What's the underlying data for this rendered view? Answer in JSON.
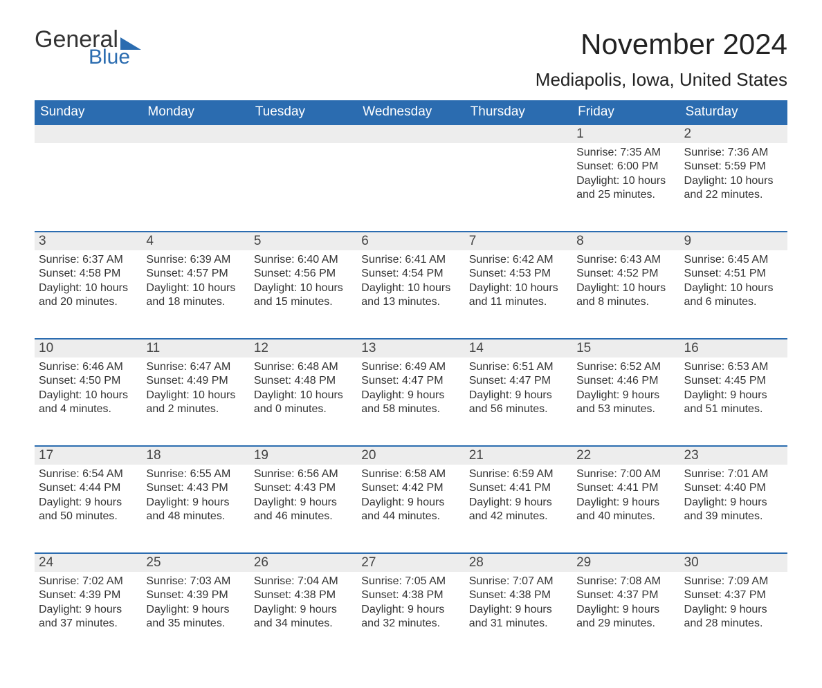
{
  "logo": {
    "word1": "General",
    "word2": "Blue"
  },
  "title": "November 2024",
  "location": "Mediapolis, Iowa, United States",
  "colors": {
    "header_bg": "#2b6cb0",
    "header_text": "#ffffff",
    "row_border": "#2b6cb0",
    "daynum_bg": "#ededed",
    "body_text": "#333333",
    "page_bg": "#ffffff"
  },
  "weekdays": [
    "Sunday",
    "Monday",
    "Tuesday",
    "Wednesday",
    "Thursday",
    "Friday",
    "Saturday"
  ],
  "weeks": [
    [
      null,
      null,
      null,
      null,
      null,
      {
        "n": "1",
        "sr": "7:35 AM",
        "ss": "6:00 PM",
        "d1": "10 hours",
        "d2": "and 25 minutes."
      },
      {
        "n": "2",
        "sr": "7:36 AM",
        "ss": "5:59 PM",
        "d1": "10 hours",
        "d2": "and 22 minutes."
      }
    ],
    [
      {
        "n": "3",
        "sr": "6:37 AM",
        "ss": "4:58 PM",
        "d1": "10 hours",
        "d2": "and 20 minutes."
      },
      {
        "n": "4",
        "sr": "6:39 AM",
        "ss": "4:57 PM",
        "d1": "10 hours",
        "d2": "and 18 minutes."
      },
      {
        "n": "5",
        "sr": "6:40 AM",
        "ss": "4:56 PM",
        "d1": "10 hours",
        "d2": "and 15 minutes."
      },
      {
        "n": "6",
        "sr": "6:41 AM",
        "ss": "4:54 PM",
        "d1": "10 hours",
        "d2": "and 13 minutes."
      },
      {
        "n": "7",
        "sr": "6:42 AM",
        "ss": "4:53 PM",
        "d1": "10 hours",
        "d2": "and 11 minutes."
      },
      {
        "n": "8",
        "sr": "6:43 AM",
        "ss": "4:52 PM",
        "d1": "10 hours",
        "d2": "and 8 minutes."
      },
      {
        "n": "9",
        "sr": "6:45 AM",
        "ss": "4:51 PM",
        "d1": "10 hours",
        "d2": "and 6 minutes."
      }
    ],
    [
      {
        "n": "10",
        "sr": "6:46 AM",
        "ss": "4:50 PM",
        "d1": "10 hours",
        "d2": "and 4 minutes."
      },
      {
        "n": "11",
        "sr": "6:47 AM",
        "ss": "4:49 PM",
        "d1": "10 hours",
        "d2": "and 2 minutes."
      },
      {
        "n": "12",
        "sr": "6:48 AM",
        "ss": "4:48 PM",
        "d1": "10 hours",
        "d2": "and 0 minutes."
      },
      {
        "n": "13",
        "sr": "6:49 AM",
        "ss": "4:47 PM",
        "d1": "9 hours",
        "d2": "and 58 minutes."
      },
      {
        "n": "14",
        "sr": "6:51 AM",
        "ss": "4:47 PM",
        "d1": "9 hours",
        "d2": "and 56 minutes."
      },
      {
        "n": "15",
        "sr": "6:52 AM",
        "ss": "4:46 PM",
        "d1": "9 hours",
        "d2": "and 53 minutes."
      },
      {
        "n": "16",
        "sr": "6:53 AM",
        "ss": "4:45 PM",
        "d1": "9 hours",
        "d2": "and 51 minutes."
      }
    ],
    [
      {
        "n": "17",
        "sr": "6:54 AM",
        "ss": "4:44 PM",
        "d1": "9 hours",
        "d2": "and 50 minutes."
      },
      {
        "n": "18",
        "sr": "6:55 AM",
        "ss": "4:43 PM",
        "d1": "9 hours",
        "d2": "and 48 minutes."
      },
      {
        "n": "19",
        "sr": "6:56 AM",
        "ss": "4:43 PM",
        "d1": "9 hours",
        "d2": "and 46 minutes."
      },
      {
        "n": "20",
        "sr": "6:58 AM",
        "ss": "4:42 PM",
        "d1": "9 hours",
        "d2": "and 44 minutes."
      },
      {
        "n": "21",
        "sr": "6:59 AM",
        "ss": "4:41 PM",
        "d1": "9 hours",
        "d2": "and 42 minutes."
      },
      {
        "n": "22",
        "sr": "7:00 AM",
        "ss": "4:41 PM",
        "d1": "9 hours",
        "d2": "and 40 minutes."
      },
      {
        "n": "23",
        "sr": "7:01 AM",
        "ss": "4:40 PM",
        "d1": "9 hours",
        "d2": "and 39 minutes."
      }
    ],
    [
      {
        "n": "24",
        "sr": "7:02 AM",
        "ss": "4:39 PM",
        "d1": "9 hours",
        "d2": "and 37 minutes."
      },
      {
        "n": "25",
        "sr": "7:03 AM",
        "ss": "4:39 PM",
        "d1": "9 hours",
        "d2": "and 35 minutes."
      },
      {
        "n": "26",
        "sr": "7:04 AM",
        "ss": "4:38 PM",
        "d1": "9 hours",
        "d2": "and 34 minutes."
      },
      {
        "n": "27",
        "sr": "7:05 AM",
        "ss": "4:38 PM",
        "d1": "9 hours",
        "d2": "and 32 minutes."
      },
      {
        "n": "28",
        "sr": "7:07 AM",
        "ss": "4:38 PM",
        "d1": "9 hours",
        "d2": "and 31 minutes."
      },
      {
        "n": "29",
        "sr": "7:08 AM",
        "ss": "4:37 PM",
        "d1": "9 hours",
        "d2": "and 29 minutes."
      },
      {
        "n": "30",
        "sr": "7:09 AM",
        "ss": "4:37 PM",
        "d1": "9 hours",
        "d2": "and 28 minutes."
      }
    ]
  ],
  "labels": {
    "sunrise": "Sunrise: ",
    "sunset": "Sunset: ",
    "daylight": "Daylight: "
  }
}
